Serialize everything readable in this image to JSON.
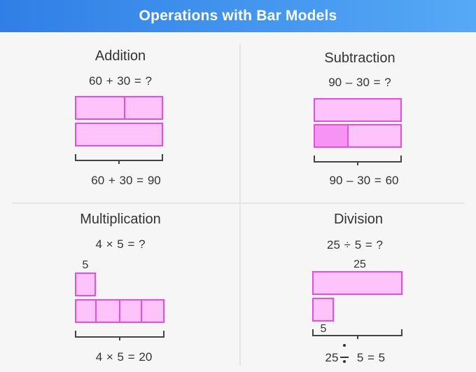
{
  "header": {
    "title": "Operations with Bar Models"
  },
  "addition": {
    "title": "Addition",
    "problem": "60 + 30 = ?",
    "result": "60 + 30 = 90"
  },
  "subtraction": {
    "title": "Subtraction",
    "problem": "90 – 30 = ?",
    "result": "90 – 30 = 60"
  },
  "multiplication": {
    "title": "Multiplication",
    "problem": "4 × 5 = ?",
    "unit_label": "5",
    "result": "4 × 5 = 20"
  },
  "division": {
    "title": "Division",
    "problem": "25 ÷ 5 = ?",
    "total_label": "25",
    "unit_label": "5",
    "result_left": "25",
    "result_right": "5 = 5"
  },
  "colors": {
    "header_start": "#2f7fe6",
    "header_end": "#55a9f5",
    "bar_fill": "#fdc3fb",
    "bar_fill_highlight": "#f793f2",
    "bar_border": "#e84ee0"
  }
}
